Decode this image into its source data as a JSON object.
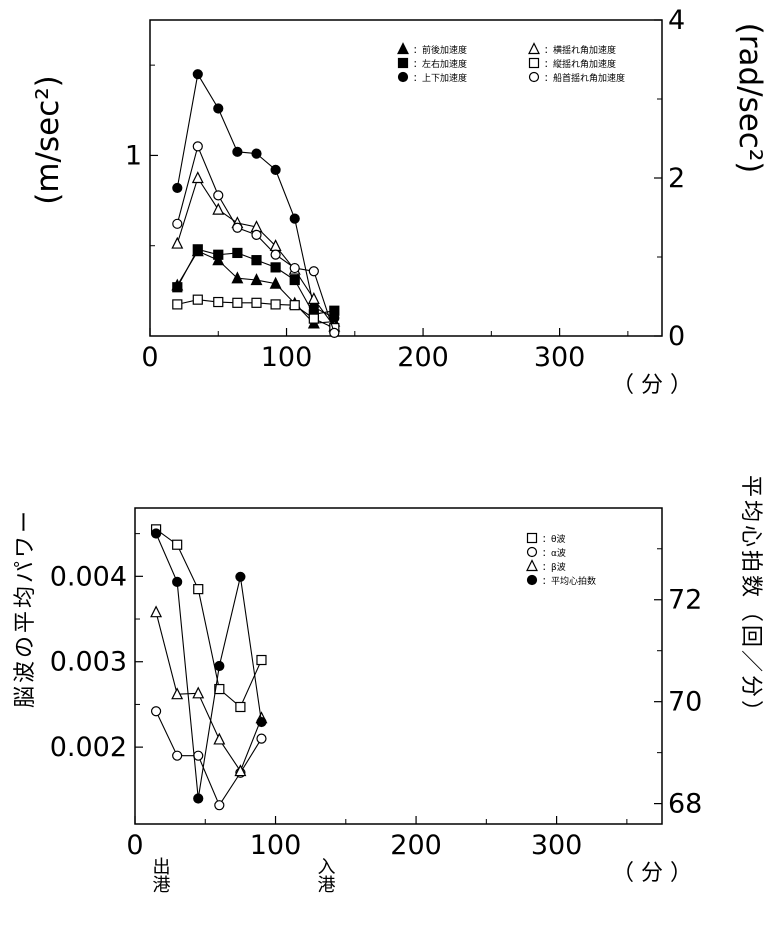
{
  "chart_data": [
    {
      "type": "line",
      "xlabel": "（ 分 ）",
      "ylabel_left": "(m/sec²)",
      "ylabel_right": "(rad/sec²)",
      "xlim": [
        0,
        375
      ],
      "ylim_left": [
        0,
        1.75
      ],
      "ylim_right": [
        0,
        4
      ],
      "x_ticks": [
        "0",
        "100",
        "200",
        "300"
      ],
      "y_ticks_left": [
        "1"
      ],
      "y_ticks_right": [
        "0",
        "2",
        "4"
      ],
      "legend_position": "top-right",
      "x": [
        20,
        35,
        50,
        64,
        78,
        92,
        106,
        120,
        135
      ],
      "series": [
        {
          "name": "前後加速度",
          "marker": "filled-triangle",
          "axis": "left",
          "values": [
            0.28,
            0.47,
            0.42,
            0.32,
            0.31,
            0.29,
            0.18,
            0.07,
            0.08
          ]
        },
        {
          "name": "左右加速度",
          "marker": "filled-square",
          "axis": "left",
          "values": [
            0.27,
            0.48,
            0.45,
            0.46,
            0.42,
            0.38,
            0.31,
            0.12,
            0.14
          ]
        },
        {
          "name": "上下加速度",
          "marker": "filled-circle",
          "axis": "left",
          "values": [
            0.82,
            1.45,
            1.26,
            1.02,
            1.01,
            0.92,
            0.65,
            0.16,
            0.1
          ]
        },
        {
          "name": "横揺れ角加速度",
          "marker": "open-triangle",
          "axis": "right",
          "values": [
            1.17,
            2.0,
            1.6,
            1.43,
            1.38,
            1.14,
            0.84,
            0.47,
            0.12
          ]
        },
        {
          "name": "縦揺れ角加速度",
          "marker": "open-square",
          "axis": "right",
          "values": [
            0.4,
            0.46,
            0.43,
            0.42,
            0.42,
            0.4,
            0.39,
            0.22,
            0.1
          ]
        },
        {
          "name": "船首揺れ角加速度",
          "marker": "open-circle",
          "axis": "right",
          "values": [
            1.42,
            2.4,
            1.78,
            1.37,
            1.28,
            1.03,
            0.86,
            0.82,
            0.04
          ]
        }
      ]
    },
    {
      "type": "line",
      "xlabel": "（ 分 ）",
      "ylabel_left": "脳波の平均パワー",
      "ylabel_right": "平均心拍数（回／分）",
      "xlim": [
        0,
        375
      ],
      "ylim_left": [
        0.0011,
        0.0048
      ],
      "ylim_right": [
        67.6,
        73.8
      ],
      "x_ticks": [
        "0",
        "100",
        "200",
        "300"
      ],
      "y_ticks_left": [
        "0.002",
        "0.003",
        "0.004"
      ],
      "y_ticks_right": [
        "68",
        "70",
        "72"
      ],
      "legend_position": "top-right",
      "x": [
        15,
        30,
        45,
        60,
        75,
        90
      ],
      "series": [
        {
          "name": "θ波",
          "marker": "open-square",
          "axis": "left",
          "values": [
            0.00455,
            0.00437,
            0.00385,
            0.00268,
            0.00247,
            0.00302
          ]
        },
        {
          "name": "α波",
          "marker": "open-circle",
          "axis": "left",
          "values": [
            0.00242,
            0.0019,
            0.0019,
            0.00132,
            0.0017,
            0.0021
          ]
        },
        {
          "name": "β波",
          "marker": "open-triangle",
          "axis": "left",
          "values": [
            0.00358,
            0.00262,
            0.00263,
            0.00209,
            0.00172,
            0.00234
          ]
        },
        {
          "name": "平均心拍数",
          "marker": "filled-circle",
          "axis": "right",
          "values": [
            73.3,
            72.35,
            68.1,
            70.7,
            72.45,
            69.6
          ]
        }
      ]
    }
  ],
  "annotations": {
    "depart": "出港",
    "arrive": "入港"
  },
  "colors": {
    "ink": "#000000",
    "background": "#ffffff"
  }
}
